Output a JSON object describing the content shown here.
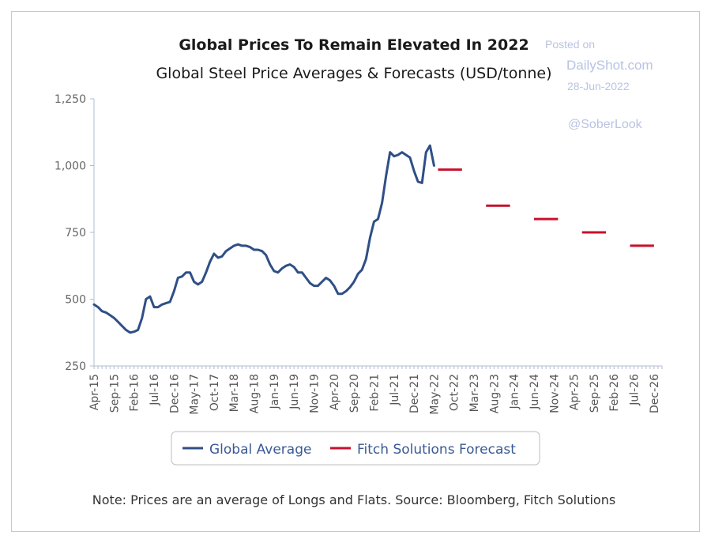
{
  "watermark": {
    "line1": "Posted on",
    "line2": "DailyShot.com",
    "line3": "28-Jun-2022",
    "handle": "@SoberLook"
  },
  "note": "Note: Prices are an average of Longs and Flats. Source: Bloomberg, Fitch Solutions",
  "colors": {
    "global_average": "#2f4f86",
    "forecast": "#c8102e",
    "axis": "#b0bcd0"
  },
  "chart_data": {
    "type": "line",
    "title": "Global Prices To Remain Elevated In 2022",
    "subtitle": "Global Steel Price Averages & Forecasts (USD/tonne)",
    "xlabel": "",
    "ylabel": "",
    "ylim": [
      250,
      1250
    ],
    "yticks": [
      "1,250",
      "1,000",
      "750",
      "500",
      "250"
    ],
    "ytick_values": [
      1250,
      1000,
      750,
      500,
      250
    ],
    "xlim": [
      "2015-04",
      "2027-02"
    ],
    "xtick_labels": [
      "Apr-15",
      "Sep-15",
      "Feb-16",
      "Jul-16",
      "Dec-16",
      "May-17",
      "Oct-17",
      "Mar-18",
      "Aug-18",
      "Jan-19",
      "Jun-19",
      "Nov-19",
      "Apr-20",
      "Sep-20",
      "Feb-21",
      "Jul-21",
      "Dec-21",
      "May-22",
      "Oct-22",
      "Mar-23",
      "Aug-23",
      "Jan-24",
      "Jun-24",
      "Nov-24",
      "Apr-25",
      "Sep-25",
      "Feb-26",
      "Jul-26",
      "Dec-26"
    ],
    "xtick_dates": [
      "2015-04",
      "2015-09",
      "2016-02",
      "2016-07",
      "2016-12",
      "2017-05",
      "2017-10",
      "2018-03",
      "2018-08",
      "2019-01",
      "2019-06",
      "2019-11",
      "2020-04",
      "2020-09",
      "2021-02",
      "2021-07",
      "2021-12",
      "2022-05",
      "2022-10",
      "2023-03",
      "2023-08",
      "2024-01",
      "2024-06",
      "2024-11",
      "2025-04",
      "2025-09",
      "2026-02",
      "2026-07",
      "2026-12"
    ],
    "grid": false,
    "legend": "bottom",
    "series": [
      {
        "name": "Global Average",
        "type": "line",
        "points": [
          [
            "2015-04",
            480
          ],
          [
            "2015-05",
            470
          ],
          [
            "2015-06",
            455
          ],
          [
            "2015-07",
            450
          ],
          [
            "2015-08",
            440
          ],
          [
            "2015-09",
            430
          ],
          [
            "2015-10",
            415
          ],
          [
            "2015-11",
            400
          ],
          [
            "2015-12",
            385
          ],
          [
            "2016-01",
            375
          ],
          [
            "2016-02",
            378
          ],
          [
            "2016-03",
            385
          ],
          [
            "2016-04",
            430
          ],
          [
            "2016-05",
            500
          ],
          [
            "2016-06",
            510
          ],
          [
            "2016-07",
            470
          ],
          [
            "2016-08",
            470
          ],
          [
            "2016-09",
            480
          ],
          [
            "2016-10",
            485
          ],
          [
            "2016-11",
            490
          ],
          [
            "2016-12",
            530
          ],
          [
            "2017-01",
            580
          ],
          [
            "2017-02",
            585
          ],
          [
            "2017-03",
            600
          ],
          [
            "2017-04",
            600
          ],
          [
            "2017-05",
            565
          ],
          [
            "2017-06",
            555
          ],
          [
            "2017-07",
            565
          ],
          [
            "2017-08",
            600
          ],
          [
            "2017-09",
            640
          ],
          [
            "2017-10",
            670
          ],
          [
            "2017-11",
            655
          ],
          [
            "2017-12",
            660
          ],
          [
            "2018-01",
            680
          ],
          [
            "2018-02",
            690
          ],
          [
            "2018-03",
            700
          ],
          [
            "2018-04",
            705
          ],
          [
            "2018-05",
            700
          ],
          [
            "2018-06",
            700
          ],
          [
            "2018-07",
            695
          ],
          [
            "2018-08",
            685
          ],
          [
            "2018-09",
            685
          ],
          [
            "2018-10",
            680
          ],
          [
            "2018-11",
            665
          ],
          [
            "2018-12",
            630
          ],
          [
            "2019-01",
            605
          ],
          [
            "2019-02",
            600
          ],
          [
            "2019-03",
            615
          ],
          [
            "2019-04",
            625
          ],
          [
            "2019-05",
            630
          ],
          [
            "2019-06",
            620
          ],
          [
            "2019-07",
            600
          ],
          [
            "2019-08",
            600
          ],
          [
            "2019-09",
            580
          ],
          [
            "2019-10",
            560
          ],
          [
            "2019-11",
            550
          ],
          [
            "2019-12",
            550
          ],
          [
            "2020-01",
            565
          ],
          [
            "2020-02",
            580
          ],
          [
            "2020-03",
            570
          ],
          [
            "2020-04",
            550
          ],
          [
            "2020-05",
            520
          ],
          [
            "2020-06",
            520
          ],
          [
            "2020-07",
            530
          ],
          [
            "2020-08",
            545
          ],
          [
            "2020-09",
            565
          ],
          [
            "2020-10",
            595
          ],
          [
            "2020-11",
            610
          ],
          [
            "2020-12",
            650
          ],
          [
            "2021-01",
            730
          ],
          [
            "2021-02",
            790
          ],
          [
            "2021-03",
            800
          ],
          [
            "2021-04",
            860
          ],
          [
            "2021-05",
            960
          ],
          [
            "2021-06",
            1050
          ],
          [
            "2021-07",
            1035
          ],
          [
            "2021-08",
            1040
          ],
          [
            "2021-09",
            1050
          ],
          [
            "2021-10",
            1040
          ],
          [
            "2021-11",
            1030
          ],
          [
            "2021-12",
            980
          ],
          [
            "2022-01",
            940
          ],
          [
            "2022-02",
            935
          ],
          [
            "2022-03",
            1050
          ],
          [
            "2022-04",
            1075
          ],
          [
            "2022-05",
            1000
          ]
        ]
      },
      {
        "name": "Fitch Solutions Forecast",
        "type": "step",
        "segments": [
          {
            "from": "2022-06",
            "to": "2022-12",
            "value": 985
          },
          {
            "from": "2023-06",
            "to": "2023-12",
            "value": 850
          },
          {
            "from": "2024-06",
            "to": "2024-12",
            "value": 800
          },
          {
            "from": "2025-06",
            "to": "2025-12",
            "value": 750
          },
          {
            "from": "2026-06",
            "to": "2026-12",
            "value": 700
          }
        ]
      }
    ]
  }
}
